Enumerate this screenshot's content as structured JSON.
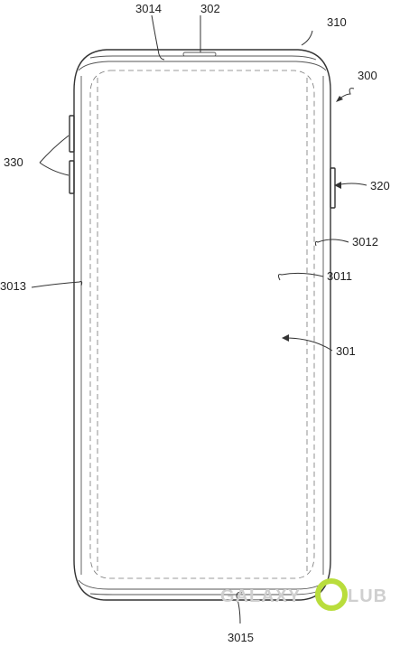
{
  "figure": {
    "labels": {
      "l300": "300",
      "l302": "302",
      "l310": "310",
      "l320": "320",
      "l330": "330",
      "l301": "301",
      "l3011": "3011",
      "l3012": "3012",
      "l3013": "3013",
      "l3014": "3014",
      "l3015": "3015"
    }
  },
  "watermark": {
    "text_left": "GALAXY",
    "text_right": "LUB",
    "ring_color": "#b9dd3c",
    "text_color": "#cfcfcf"
  },
  "colors": {
    "line": "#333333",
    "dash": "#777777",
    "background": "#ffffff"
  }
}
